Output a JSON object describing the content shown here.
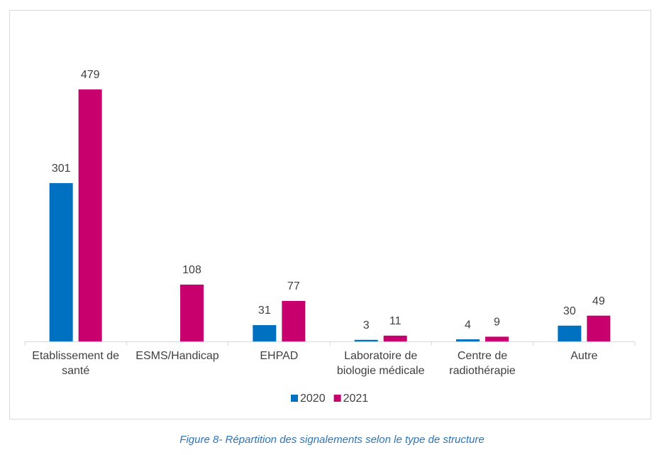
{
  "chart_data": {
    "type": "bar",
    "categories": [
      "Etablissement de santé",
      "ESMS/Handicap",
      "EHPAD",
      "Laboratoire de biologie médicale",
      "Centre de radiothérapie",
      "Autre"
    ],
    "series": [
      {
        "name": "2020",
        "color": "#0070c0",
        "values": [
          301,
          null,
          31,
          3,
          4,
          30
        ]
      },
      {
        "name": "2021",
        "color": "#c8006e",
        "values": [
          479,
          108,
          77,
          11,
          9,
          49
        ]
      }
    ],
    "legend": "bottom",
    "caption": "Figure 8- Répartition des signalements selon le type de structure"
  }
}
